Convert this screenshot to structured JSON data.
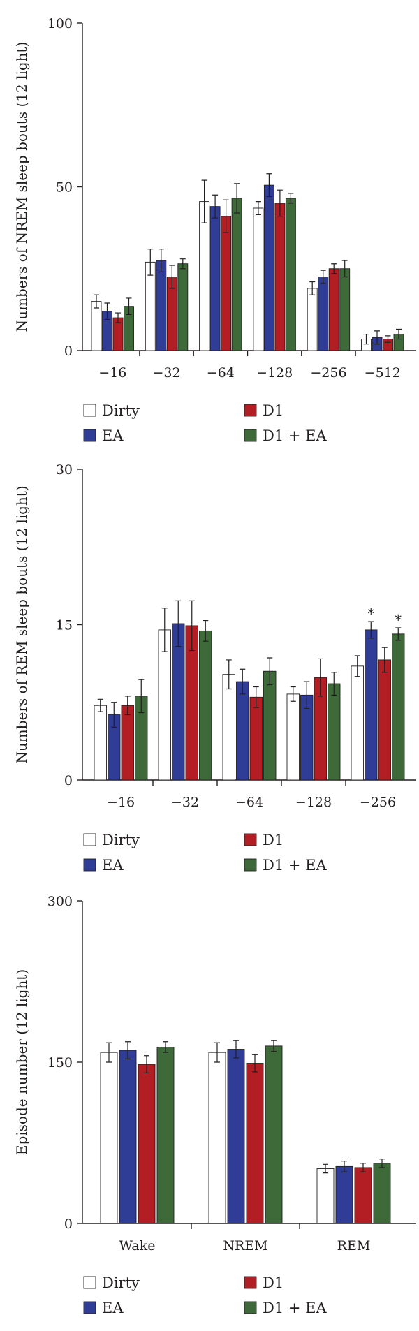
{
  "colors": {
    "Dirty": "#ffffff",
    "EA": "#2f3d96",
    "D1": "#b21e23",
    "D1 + EA": "#3e6a3a"
  },
  "chart_data": [
    {
      "type": "bar",
      "title": "",
      "xlabel": "",
      "ylabel": "Numbers of NREM sleep bouts (12 light)",
      "ylim": [
        0,
        100
      ],
      "yticks": [
        0,
        50,
        100
      ],
      "categories": [
        "−16",
        "−32",
        "−64",
        "−128",
        "−256",
        "−512"
      ],
      "series": [
        {
          "name": "Dirty",
          "values": [
            15,
            27,
            45.5,
            43.5,
            19,
            3.5
          ],
          "errors": [
            2,
            4,
            6.5,
            2,
            2,
            1.5
          ]
        },
        {
          "name": "EA",
          "values": [
            12,
            27.5,
            44,
            50.5,
            22.5,
            4
          ],
          "errors": [
            2.5,
            3.5,
            3.5,
            3.5,
            2,
            2
          ]
        },
        {
          "name": "D1",
          "values": [
            10,
            22.5,
            41,
            45,
            25,
            3.5
          ],
          "errors": [
            1.5,
            3.5,
            5,
            4,
            1.5,
            1
          ]
        },
        {
          "name": "D1 + EA",
          "values": [
            13.5,
            26.5,
            46.5,
            46.5,
            25,
            5
          ],
          "errors": [
            2.5,
            1.5,
            4.5,
            1.5,
            2.5,
            1.5
          ]
        }
      ],
      "significance": [],
      "legend": "below"
    },
    {
      "type": "bar",
      "title": "",
      "xlabel": "",
      "ylabel": "Numbers of REM sleep bouts (12 light)",
      "ylim": [
        0,
        30
      ],
      "yticks": [
        0,
        15,
        30
      ],
      "categories": [
        "−16",
        "−32",
        "−64",
        "−128",
        "−256"
      ],
      "series": [
        {
          "name": "Dirty",
          "values": [
            7.2,
            14.5,
            10.2,
            8.3,
            11
          ],
          "errors": [
            0.6,
            2.1,
            1.4,
            0.7,
            1
          ]
        },
        {
          "name": "EA",
          "values": [
            6.3,
            15.1,
            9.5,
            8.2,
            14.5
          ],
          "errors": [
            1.2,
            2.2,
            1.2,
            1.3,
            0.8
          ]
        },
        {
          "name": "D1",
          "values": [
            7.2,
            14.9,
            8,
            9.9,
            11.6
          ],
          "errors": [
            0.9,
            2.4,
            1,
            1.8,
            1.2
          ]
        },
        {
          "name": "D1 + EA",
          "values": [
            8.1,
            14.4,
            10.5,
            9.3,
            14.1
          ],
          "errors": [
            1.6,
            1,
            1.3,
            1.1,
            0.6
          ]
        }
      ],
      "significance": [
        {
          "category": "−256",
          "series": "EA",
          "label": "*"
        },
        {
          "category": "−256",
          "series": "D1 + EA",
          "label": "*"
        }
      ],
      "legend": "below"
    },
    {
      "type": "bar",
      "title": "",
      "xlabel": "",
      "ylabel": "Episode number (12 light)",
      "ylim": [
        0,
        300
      ],
      "yticks": [
        0,
        150,
        300
      ],
      "categories": [
        "Wake",
        "NREM",
        "REM"
      ],
      "series": [
        {
          "name": "Dirty",
          "values": [
            159,
            159,
            51
          ],
          "errors": [
            9,
            9,
            4
          ]
        },
        {
          "name": "EA",
          "values": [
            161,
            162,
            53
          ],
          "errors": [
            8,
            8,
            5
          ]
        },
        {
          "name": "D1",
          "values": [
            148,
            149,
            52
          ],
          "errors": [
            8,
            8,
            4
          ]
        },
        {
          "name": "D1 + EA",
          "values": [
            164,
            165,
            56
          ],
          "errors": [
            5,
            5,
            4
          ]
        }
      ],
      "significance": [],
      "legend": "below"
    }
  ]
}
